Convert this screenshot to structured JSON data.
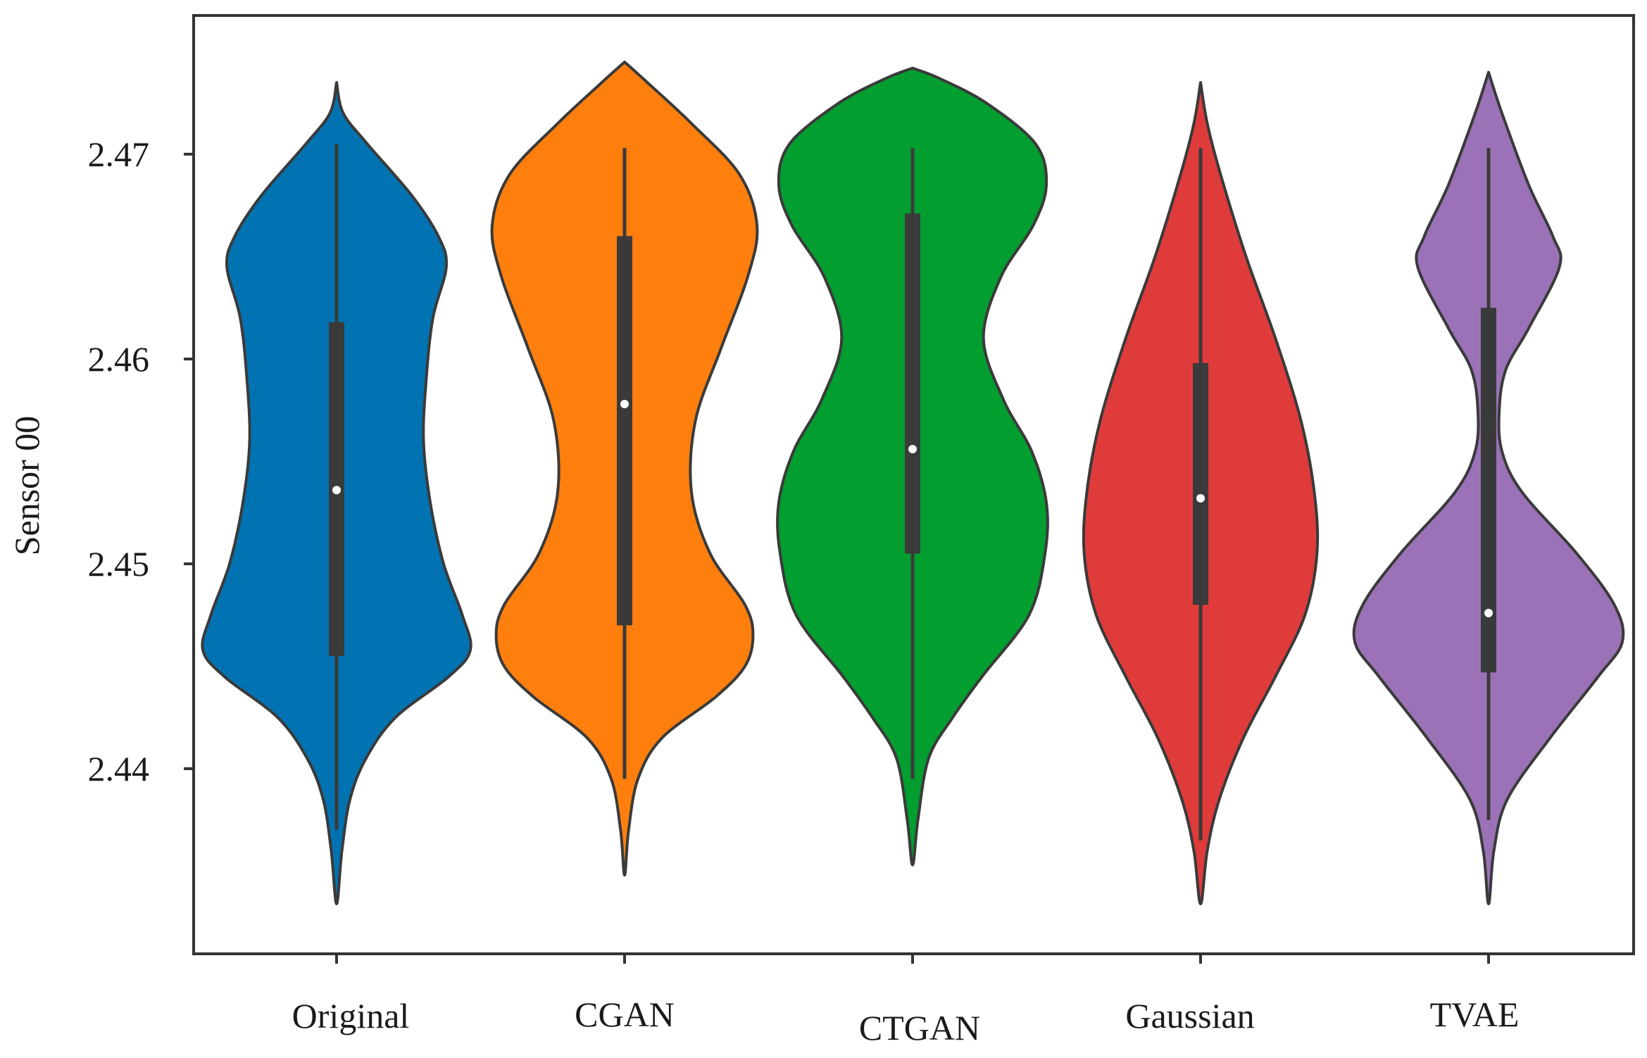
{
  "chart_data": {
    "type": "violin",
    "title": "",
    "xlabel": "",
    "ylabel": "Sensor 00",
    "ylim": [
      2.4341,
      2.4762
    ],
    "yticks": [
      2.44,
      2.45,
      2.46,
      2.47
    ],
    "yticklabels": [
      "2.44",
      "2.45",
      "2.46",
      "2.47"
    ],
    "grid": false,
    "legend": "none",
    "categories": [
      "Original",
      "CGAN",
      "CTGAN",
      "Gaussian",
      "TVAE"
    ],
    "series": [
      {
        "name": "Original",
        "color": "#0173b2",
        "min": 2.437,
        "q1": 2.4455,
        "median": 2.4536,
        "q3": 2.4618,
        "max": 2.4705,
        "density": [
          [
            2.4334,
            0.0
          ],
          [
            2.436,
            0.04
          ],
          [
            2.4385,
            0.1
          ],
          [
            2.4405,
            0.22
          ],
          [
            2.4425,
            0.44
          ],
          [
            2.4445,
            0.84
          ],
          [
            2.4458,
            1.0
          ],
          [
            2.4475,
            0.94
          ],
          [
            2.45,
            0.8
          ],
          [
            2.453,
            0.7
          ],
          [
            2.456,
            0.65
          ],
          [
            2.459,
            0.67
          ],
          [
            2.462,
            0.72
          ],
          [
            2.4645,
            0.82
          ],
          [
            2.466,
            0.76
          ],
          [
            2.468,
            0.56
          ],
          [
            2.4705,
            0.23
          ],
          [
            2.472,
            0.05
          ],
          [
            2.4735,
            0.0
          ]
        ]
      },
      {
        "name": "CGAN",
        "color": "#ff7f0e",
        "min": 2.4395,
        "q1": 2.447,
        "median": 2.4578,
        "q3": 2.466,
        "max": 2.4703,
        "density": [
          [
            2.4348,
            0.0
          ],
          [
            2.437,
            0.03
          ],
          [
            2.4395,
            0.1
          ],
          [
            2.4415,
            0.28
          ],
          [
            2.4435,
            0.68
          ],
          [
            2.445,
            0.9
          ],
          [
            2.4465,
            0.96
          ],
          [
            2.448,
            0.9
          ],
          [
            2.4505,
            0.64
          ],
          [
            2.4535,
            0.5
          ],
          [
            2.457,
            0.53
          ],
          [
            2.4605,
            0.72
          ],
          [
            2.464,
            0.92
          ],
          [
            2.4665,
            0.99
          ],
          [
            2.469,
            0.86
          ],
          [
            2.4715,
            0.5
          ],
          [
            2.4735,
            0.17
          ],
          [
            2.4745,
            0.0
          ]
        ]
      },
      {
        "name": "CTGAN",
        "color": "#029e2f",
        "min": 2.4395,
        "q1": 2.4505,
        "median": 2.4556,
        "q3": 2.4671,
        "max": 2.4703,
        "density": [
          [
            2.4353,
            0.0
          ],
          [
            2.4375,
            0.04
          ],
          [
            2.4405,
            0.12
          ],
          [
            2.4425,
            0.3
          ],
          [
            2.4445,
            0.52
          ],
          [
            2.4475,
            0.87
          ],
          [
            2.4505,
            0.99
          ],
          [
            2.453,
            1.0
          ],
          [
            2.4555,
            0.89
          ],
          [
            2.458,
            0.68
          ],
          [
            2.461,
            0.53
          ],
          [
            2.464,
            0.66
          ],
          [
            2.4665,
            0.9
          ],
          [
            2.4685,
            1.0
          ],
          [
            2.4705,
            0.92
          ],
          [
            2.4725,
            0.55
          ],
          [
            2.4737,
            0.2
          ],
          [
            2.4742,
            0.0
          ]
        ]
      },
      {
        "name": "Gaussian",
        "color": "#e03b3b",
        "min": 2.4365,
        "q1": 2.448,
        "median": 2.4532,
        "q3": 2.4598,
        "max": 2.4703,
        "density": [
          [
            2.4334,
            0.0
          ],
          [
            2.436,
            0.05
          ],
          [
            2.4385,
            0.14
          ],
          [
            2.4415,
            0.32
          ],
          [
            2.4445,
            0.56
          ],
          [
            2.4475,
            0.78
          ],
          [
            2.4505,
            0.87
          ],
          [
            2.4535,
            0.85
          ],
          [
            2.457,
            0.75
          ],
          [
            2.461,
            0.56
          ],
          [
            2.465,
            0.34
          ],
          [
            2.469,
            0.15
          ],
          [
            2.4715,
            0.05
          ],
          [
            2.4735,
            0.0
          ]
        ]
      },
      {
        "name": "TVAE",
        "color": "#9b72b7",
        "min": 2.4375,
        "q1": 2.4447,
        "median": 2.4476,
        "q3": 2.4625,
        "max": 2.4703,
        "density": [
          [
            2.4334,
            0.0
          ],
          [
            2.436,
            0.04
          ],
          [
            2.4385,
            0.14
          ],
          [
            2.4415,
            0.46
          ],
          [
            2.4445,
            0.82
          ],
          [
            2.4462,
            1.0
          ],
          [
            2.448,
            0.94
          ],
          [
            2.4505,
            0.66
          ],
          [
            2.4535,
            0.25
          ],
          [
            2.4555,
            0.1
          ],
          [
            2.4575,
            0.08
          ],
          [
            2.4595,
            0.13
          ],
          [
            2.4615,
            0.3
          ],
          [
            2.4645,
            0.53
          ],
          [
            2.466,
            0.48
          ],
          [
            2.4685,
            0.3
          ],
          [
            2.472,
            0.1
          ],
          [
            2.474,
            0.0
          ]
        ]
      }
    ]
  }
}
